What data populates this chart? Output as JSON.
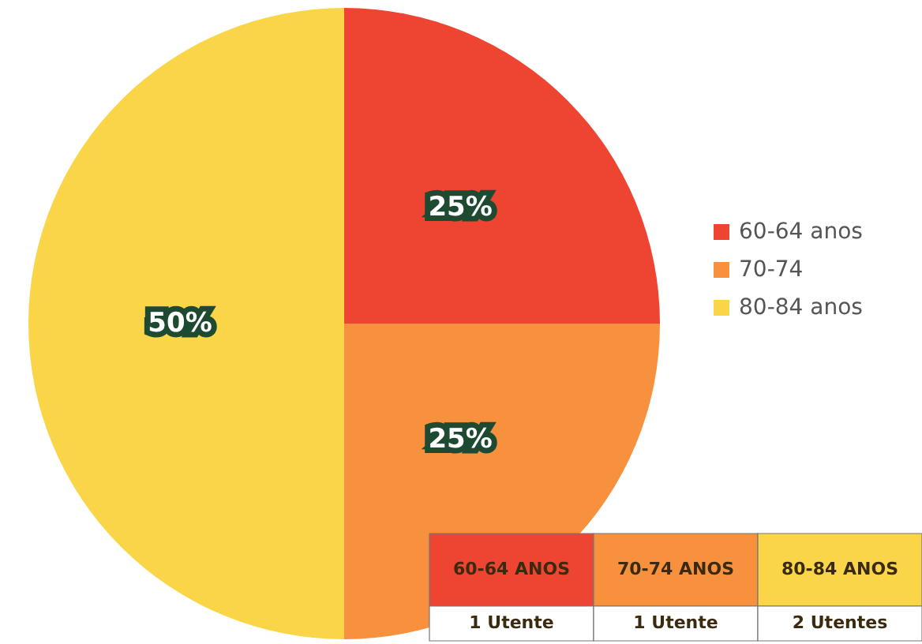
{
  "chart_data": {
    "type": "pie",
    "categories": [
      "60-64 anos",
      "70-74",
      "80-84 anos"
    ],
    "values": [
      25,
      25,
      50
    ],
    "colors": [
      "#ee4533",
      "#f7913d",
      "#fad548"
    ],
    "value_labels": [
      "25%",
      "25%",
      "50%"
    ],
    "legend": "right",
    "annotations": [
      "60-64 ANOS",
      "70-74 ANOS",
      "80-84 ANOS",
      "1 Utente",
      "1 Utente",
      "2 Utentes"
    ]
  }
}
